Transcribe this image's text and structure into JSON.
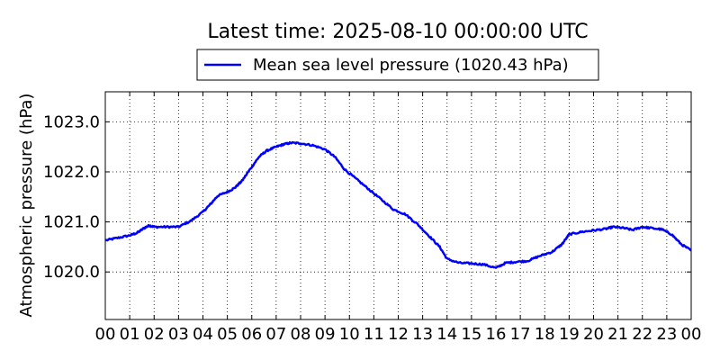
{
  "chart_data": {
    "type": "line",
    "title": "Latest time: 2025-08-10 00:00:00 UTC",
    "ylabel": "Atmospheric pressure (hPa)",
    "xlabel": "",
    "legend": {
      "placement": "top-center",
      "frame": true
    },
    "grid": true,
    "xlim": [
      0,
      24
    ],
    "ylim": [
      1019.05,
      1023.6
    ],
    "xticks": [
      "00",
      "01",
      "02",
      "03",
      "04",
      "05",
      "06",
      "07",
      "08",
      "09",
      "10",
      "11",
      "12",
      "13",
      "14",
      "15",
      "16",
      "17",
      "18",
      "19",
      "20",
      "21",
      "22",
      "23",
      "00"
    ],
    "yticks": [
      "1020.0",
      "1021.0",
      "1022.0",
      "1023.0"
    ],
    "ytick_values": [
      1020.0,
      1021.0,
      1022.0,
      1023.0
    ],
    "series": [
      {
        "name": "Mean sea level pressure (1020.43 hPa)",
        "color": "#0000ff",
        "x": [
          0,
          0.5,
          1.0,
          1.3,
          1.6,
          1.8,
          2.0,
          2.5,
          3.0,
          3.5,
          4.0,
          4.3,
          4.6,
          5.0,
          5.3,
          5.6,
          6.0,
          6.3,
          6.6,
          7.0,
          7.3,
          7.6,
          8.0,
          8.5,
          9.0,
          9.4,
          9.8,
          10.3,
          10.8,
          11.3,
          11.8,
          12.3,
          12.8,
          13.3,
          13.7,
          14.0,
          14.5,
          15.0,
          15.5,
          16.0,
          16.4,
          16.8,
          17.3,
          17.8,
          18.3,
          18.7,
          19.0,
          19.5,
          20.0,
          20.5,
          20.8,
          21.2,
          21.6,
          22.0,
          22.3,
          22.8,
          23.2,
          23.6,
          24.0
        ],
        "values": [
          1020.63,
          1020.68,
          1020.73,
          1020.78,
          1020.88,
          1020.93,
          1020.9,
          1020.9,
          1020.9,
          1021.02,
          1021.2,
          1021.35,
          1021.52,
          1021.6,
          1021.68,
          1021.82,
          1022.1,
          1022.3,
          1022.42,
          1022.5,
          1022.55,
          1022.58,
          1022.57,
          1022.53,
          1022.45,
          1022.3,
          1022.05,
          1021.85,
          1021.65,
          1021.45,
          1021.25,
          1021.15,
          1020.95,
          1020.7,
          1020.5,
          1020.26,
          1020.18,
          1020.17,
          1020.15,
          1020.08,
          1020.18,
          1020.2,
          1020.22,
          1020.32,
          1020.4,
          1020.55,
          1020.75,
          1020.8,
          1020.83,
          1020.86,
          1020.9,
          1020.88,
          1020.84,
          1020.9,
          1020.88,
          1020.85,
          1020.75,
          1020.55,
          1020.43
        ]
      }
    ]
  }
}
